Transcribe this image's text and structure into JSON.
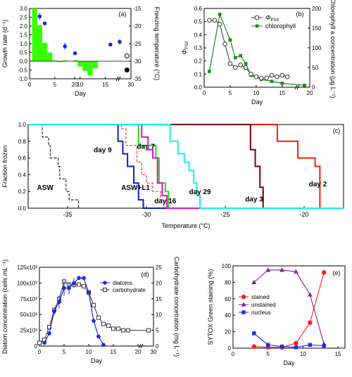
{
  "chart_data": [
    {
      "panel": "(a)",
      "type": "bar",
      "xlabel": "Day",
      "ylabel": "Growth rate (d⁻¹)",
      "ylabel_right": "Freezing temperature (°C)",
      "xticks": [
        "0",
        "5",
        "10",
        "15",
        "20",
        "30"
      ],
      "yticks": [
        "-1.0",
        "-0.5",
        "0.0",
        "0.5",
        "1.0",
        "1.5",
        "2.0",
        "2.5",
        "3.0"
      ],
      "yticks_right": [
        "-35",
        "-30",
        "-25",
        "-20",
        "-15"
      ],
      "xlim": [
        0,
        30
      ],
      "ylim": [
        -1.0,
        3.0
      ],
      "ylim_right": [
        -35,
        -15
      ],
      "bar_color": "#33ff00",
      "bars": {
        "x": [
          1,
          2,
          3,
          4,
          5,
          6,
          7,
          8,
          9,
          10,
          11,
          12,
          13
        ],
        "values": [
          3.0,
          2.05,
          1.05,
          0.5,
          0.05,
          -0.05,
          0.05,
          0.0,
          0.05,
          -0.3,
          -0.55,
          -0.8,
          -0.4
        ]
      },
      "growth_points": {
        "x": [
          2,
          3,
          7,
          9,
          16,
          28
        ],
        "values": [
          2.55,
          2.15,
          0.85,
          0.45,
          0.95,
          1.1
        ],
        "errors": [
          0.2,
          0.1,
          0.2,
          0.1,
          0.08,
          0.15
        ],
        "color": "#1a2be0"
      },
      "freezing_points": {
        "x": [
          29.3,
          29.3
        ],
        "values": [
          -28.5,
          -32.5
        ],
        "colors": [
          "#ffffff",
          "#000000"
        ]
      }
    },
    {
      "panel": "(b)",
      "type": "line",
      "xlabel": "Day",
      "ylabel": "Φ_PSII",
      "ylabel_right": "Chlorophyll a concentration (μg L⁻¹)",
      "xticks": [
        "0",
        "5",
        "10",
        "15",
        "20"
      ],
      "yticks": [
        "0.0",
        "0.1",
        "0.2",
        "0.3",
        "0.4",
        "0.5",
        "0.6"
      ],
      "yticks_right": [
        "0",
        "50",
        "100",
        "150",
        "200"
      ],
      "xlim": [
        0,
        20
      ],
      "ylim": [
        0.0,
        0.6
      ],
      "ylim_right": [
        0,
        200
      ],
      "series": [
        {
          "name": "Φ",
          "name_sub": "PSII",
          "x": [
            1,
            2,
            3,
            4,
            5,
            6,
            7,
            8,
            9,
            10,
            11,
            12,
            13,
            14,
            15,
            16
          ],
          "values": [
            0.51,
            0.51,
            0.48,
            0.33,
            0.18,
            0.15,
            0.17,
            0.15,
            0.1,
            0.08,
            0.07,
            0.07,
            0.09,
            0.08,
            0.09,
            0.08
          ],
          "color": "#333333"
        },
        {
          "name": "chlorophyll",
          "x": [
            1,
            3,
            5,
            6,
            7,
            8,
            9,
            11,
            13,
            15,
            19
          ],
          "values": [
            40,
            185,
            120,
            75,
            80,
            60,
            30,
            20,
            15,
            10,
            5
          ],
          "color": "#1a8a1a"
        }
      ]
    },
    {
      "panel": "(c)",
      "type": "line",
      "xlabel": "Temperature (°C)",
      "ylabel": "Fraction frozen",
      "xticks": [
        "-35",
        "-30",
        "-25",
        "-20"
      ],
      "yticks": [
        "0.0",
        "0.2",
        "0.4",
        "0.6",
        "0.8",
        "1.0"
      ],
      "xlim": [
        -37.5,
        -17.5
      ],
      "ylim": [
        0,
        1
      ],
      "series": [
        {
          "name": "ASW",
          "color": "#000000",
          "dashed": true,
          "x": [
            -37.5,
            -36.7,
            -36.6,
            -36.2,
            -36.1,
            -35.6,
            -35.5,
            -35.1,
            -34.9,
            -34.3,
            -33.8,
            -37.5
          ],
          "values": [
            1.0,
            1.0,
            0.85,
            0.75,
            0.6,
            0.5,
            0.35,
            0.2,
            0.1,
            0.0,
            0.0,
            0.0
          ]
        },
        {
          "name": "ASW+L1",
          "color": "#e0202a",
          "dashed": true,
          "x": [
            -37.5,
            -31.9,
            -31.6,
            -31.3,
            -30.6,
            -30.3,
            -30.0,
            -29.6,
            -29.1,
            -28.9,
            -17.5
          ],
          "values": [
            1.0,
            1.0,
            0.95,
            0.75,
            0.55,
            0.4,
            0.3,
            0.2,
            0.1,
            0.0,
            0.0
          ]
        },
        {
          "name": "day 2",
          "color": "#ff1a00",
          "x": [
            -37.5,
            -22.0,
            -21.7,
            -20.8,
            -20.4,
            -19.6,
            -19.3,
            -19.0,
            -17.5
          ],
          "values": [
            1.0,
            1.0,
            0.8,
            0.8,
            0.6,
            0.6,
            0.5,
            0.0,
            0.0
          ]
        },
        {
          "name": "day 3",
          "color": "#7a0000",
          "x": [
            -37.5,
            -23.8,
            -23.4,
            -23.1,
            -22.8,
            -22.6,
            -17.5
          ],
          "values": [
            1.0,
            1.0,
            0.7,
            0.5,
            0.25,
            0.0,
            0.0
          ]
        },
        {
          "name": "day 7",
          "color": "#2ad01a",
          "x": [
            -37.5,
            -30.7,
            -30.5,
            -29.8,
            -29.4,
            -29.2,
            -28.8,
            -28.6,
            -17.5
          ],
          "values": [
            1.0,
            1.0,
            0.75,
            0.75,
            0.6,
            0.3,
            0.2,
            0.0,
            0.0
          ]
        },
        {
          "name": "day 9",
          "color": "#0a20c8",
          "x": [
            -37.5,
            -32.2,
            -31.8,
            -31.5,
            -31.2,
            -30.8,
            -30.5,
            -30.2,
            -17.5
          ],
          "values": [
            1.0,
            1.0,
            0.8,
            0.65,
            0.5,
            0.3,
            0.1,
            0.0,
            0.0
          ]
        },
        {
          "name": "day 16",
          "color": "#e010d0",
          "x": [
            -37.5,
            -30.6,
            -30.3,
            -29.9,
            -29.6,
            -29.3,
            -29.0,
            -28.7,
            -17.5
          ],
          "values": [
            1.0,
            1.0,
            0.85,
            0.7,
            0.6,
            0.3,
            0.15,
            0.0,
            0.0
          ]
        },
        {
          "name": "day 29",
          "color": "#10f0f0",
          "x": [
            -37.5,
            -28.8,
            -28.5,
            -28.0,
            -27.6,
            -27.3,
            -27.0,
            -26.8,
            -26.6,
            -17.5
          ],
          "values": [
            1.0,
            1.0,
            0.8,
            0.65,
            0.55,
            0.45,
            0.3,
            0.15,
            0.0,
            0.0
          ]
        }
      ]
    },
    {
      "panel": "(d)",
      "type": "line",
      "xlabel": "Day",
      "ylabel": "Diatom concentration (cells mL⁻¹)",
      "ylabel_right": "Carbohydrate concetration (mg L⁻¹)",
      "xticks": [
        "0",
        "5",
        "10",
        "15",
        "20",
        "30"
      ],
      "yticks": [
        "0",
        "25x10³",
        "50x10³",
        "75x10³",
        "100x10³",
        "125x10³"
      ],
      "yticks_right": [
        "0",
        "5",
        "10",
        "15",
        "20",
        "25"
      ],
      "xlim": [
        0,
        30
      ],
      "ylim": [
        0,
        125000
      ],
      "ylim_right": [
        0,
        25
      ],
      "series": [
        {
          "name": "diatoms",
          "color": "#1a2be0",
          "x": [
            1,
            2,
            3,
            4,
            5,
            6,
            7,
            8,
            9,
            10,
            11,
            12,
            13
          ],
          "values": [
            5000,
            20000,
            55000,
            70000,
            92000,
            92000,
            100000,
            108000,
            108000,
            85000,
            40000,
            15000,
            2000
          ],
          "errors": [
            0,
            0,
            5000,
            10000,
            12000,
            10000,
            8000,
            0,
            0,
            0,
            0,
            0,
            0
          ]
        },
        {
          "name": "carbohydrate",
          "color": "#333333",
          "x": [
            0,
            1,
            2,
            3,
            4,
            5,
            6,
            7,
            8,
            9,
            10,
            11,
            12,
            13,
            14,
            15,
            16,
            17,
            18,
            29
          ],
          "values": [
            1,
            2,
            6,
            11.5,
            15,
            20.5,
            19.5,
            19.5,
            19.5,
            19,
            17,
            13,
            9,
            7,
            6.5,
            5.5,
            5.5,
            5,
            5,
            5
          ]
        }
      ]
    },
    {
      "panel": "(e)",
      "type": "line",
      "xlabel": "Day",
      "ylabel": "SYTOX Green staining (%)",
      "xticks": [
        "0",
        "5",
        "10",
        "15"
      ],
      "yticks": [
        "0",
        "20",
        "40",
        "60",
        "80",
        "100"
      ],
      "xlim": [
        0,
        16
      ],
      "ylim": [
        0,
        100
      ],
      "series": [
        {
          "name": "stained",
          "color": "#ff1a1a",
          "x": [
            3,
            5,
            7,
            9,
            11,
            13
          ],
          "values": [
            2,
            1,
            1,
            6,
            31,
            92
          ]
        },
        {
          "name": "unstained",
          "color": "#8a1aa0",
          "x": [
            3,
            5,
            7,
            9,
            11,
            13
          ],
          "values": [
            80,
            95,
            95,
            93,
            65,
            5
          ]
        },
        {
          "name": "nucleus",
          "color": "#1a2be0",
          "x": [
            3,
            5,
            7,
            9,
            11,
            13
          ],
          "values": [
            18,
            4,
            2,
            1,
            4,
            3
          ]
        }
      ]
    }
  ]
}
